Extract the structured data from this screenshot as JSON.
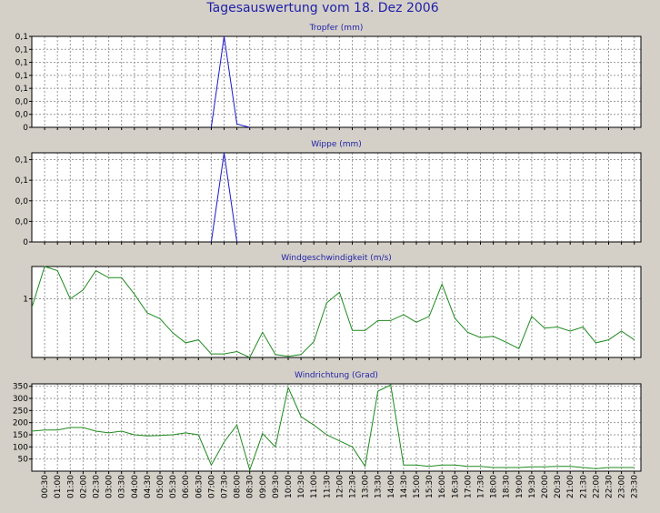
{
  "title": "Tagesauswertung vom 18. Dez 2006",
  "time_labels": [
    "00:30",
    "01:00",
    "01:30",
    "02:00",
    "02:30",
    "03:00",
    "03:30",
    "04:00",
    "04:30",
    "05:00",
    "05:30",
    "06:00",
    "06:30",
    "07:00",
    "07:30",
    "08:00",
    "08:30",
    "09:00",
    "09:30",
    "10:00",
    "10:30",
    "11:00",
    "11:30",
    "12:00",
    "12:30",
    "13:00",
    "13:30",
    "14:00",
    "14:30",
    "15:00",
    "15:30",
    "16:00",
    "16:30",
    "17:00",
    "17:30",
    "18:00",
    "18:30",
    "19:00",
    "19:30",
    "20:00",
    "20:30",
    "21:00",
    "21:30",
    "22:00",
    "22:30",
    "23:00",
    "23:30"
  ],
  "colors": {
    "background": "#d4d0c8",
    "plot_background": "#ffffff",
    "title": "#1f1fa8",
    "rain_line": "#1a1acc",
    "wind_line": "#1f8a1f",
    "grid": "#9a9a9a"
  },
  "chart_data": [
    {
      "id": "tropfer",
      "type": "line",
      "title": "Tropfer (mm)",
      "color": "#1a1acc",
      "ylim": [
        0,
        0.14
      ],
      "yticks": [
        0,
        0.02,
        0.04,
        0.06,
        0.08,
        0.1,
        0.12,
        0.14
      ],
      "ytick_labels": [
        "0",
        "0,0",
        "0,0",
        "0,1",
        "0,1",
        "0,1",
        "0,1",
        "0,1"
      ],
      "x": [
        13,
        14,
        15,
        16
      ],
      "y": [
        0,
        0.14,
        0.005,
        0
      ]
    },
    {
      "id": "wippe",
      "type": "line",
      "title": "Wippe (mm)",
      "color": "#1a1acc",
      "ylim": [
        0,
        0.13
      ],
      "yticks": [
        0,
        0.03,
        0.06,
        0.09,
        0.12
      ],
      "ytick_labels": [
        "0",
        "0,0",
        "0,0",
        "0,1",
        "0,1"
      ],
      "x": [
        13,
        14,
        15
      ],
      "y": [
        0,
        0.13,
        0
      ]
    },
    {
      "id": "windgeschwindigkeit",
      "type": "line",
      "title": "Windgeschwindigkeit (m/s)",
      "color": "#1f8a1f",
      "ylim": [
        0,
        1.55
      ],
      "yticks": [
        1
      ],
      "ytick_labels": [
        "1"
      ],
      "x": [
        -1,
        0,
        1,
        2,
        3,
        4,
        5,
        6,
        7,
        8,
        9,
        10,
        11,
        12,
        13,
        14,
        15,
        16,
        17,
        18,
        19,
        20,
        21,
        22,
        23,
        24,
        25,
        26,
        27,
        28,
        29,
        30,
        31,
        32,
        33,
        34,
        35,
        36,
        37,
        38,
        39,
        40,
        41,
        42,
        43,
        44,
        45,
        46
      ],
      "y": [
        0.85,
        1.55,
        1.48,
        1.0,
        1.15,
        1.48,
        1.36,
        1.36,
        1.08,
        0.76,
        0.66,
        0.42,
        0.25,
        0.3,
        0.06,
        0.06,
        0.1,
        0.0,
        0.43,
        0.05,
        0.02,
        0.05,
        0.27,
        0.93,
        1.11,
        0.46,
        0.46,
        0.63,
        0.63,
        0.73,
        0.6,
        0.7,
        1.25,
        0.67,
        0.43,
        0.34,
        0.36,
        0.26,
        0.15,
        0.7,
        0.5,
        0.52,
        0.45,
        0.52,
        0.25,
        0.3,
        0.45,
        0.3
      ]
    },
    {
      "id": "windrichtung",
      "type": "line",
      "title": "Windrichtung (Grad)",
      "color": "#1f8a1f",
      "ylim": [
        0,
        360
      ],
      "yticks": [
        50,
        100,
        150,
        200,
        250,
        300,
        350
      ],
      "ytick_labels": [
        "50",
        "100",
        "150",
        "200",
        "250",
        "300",
        "350"
      ],
      "x": [
        -1,
        0,
        1,
        2,
        3,
        4,
        5,
        6,
        7,
        8,
        9,
        10,
        11,
        12,
        13,
        14,
        15,
        16,
        17,
        18,
        19,
        20,
        21,
        22,
        23,
        24,
        25,
        26,
        27,
        28,
        29,
        30,
        31,
        32,
        33,
        34,
        35,
        36,
        37,
        38,
        39,
        40,
        41,
        42,
        43,
        44,
        45,
        46
      ],
      "y": [
        165,
        170,
        170,
        180,
        180,
        165,
        158,
        165,
        150,
        145,
        147,
        150,
        158,
        150,
        25,
        120,
        190,
        5,
        155,
        100,
        345,
        225,
        190,
        150,
        125,
        100,
        20,
        330,
        355,
        25,
        25,
        20,
        25,
        25,
        20,
        20,
        15,
        15,
        15,
        18,
        18,
        20,
        20,
        15,
        10,
        15,
        15,
        15
      ]
    }
  ]
}
